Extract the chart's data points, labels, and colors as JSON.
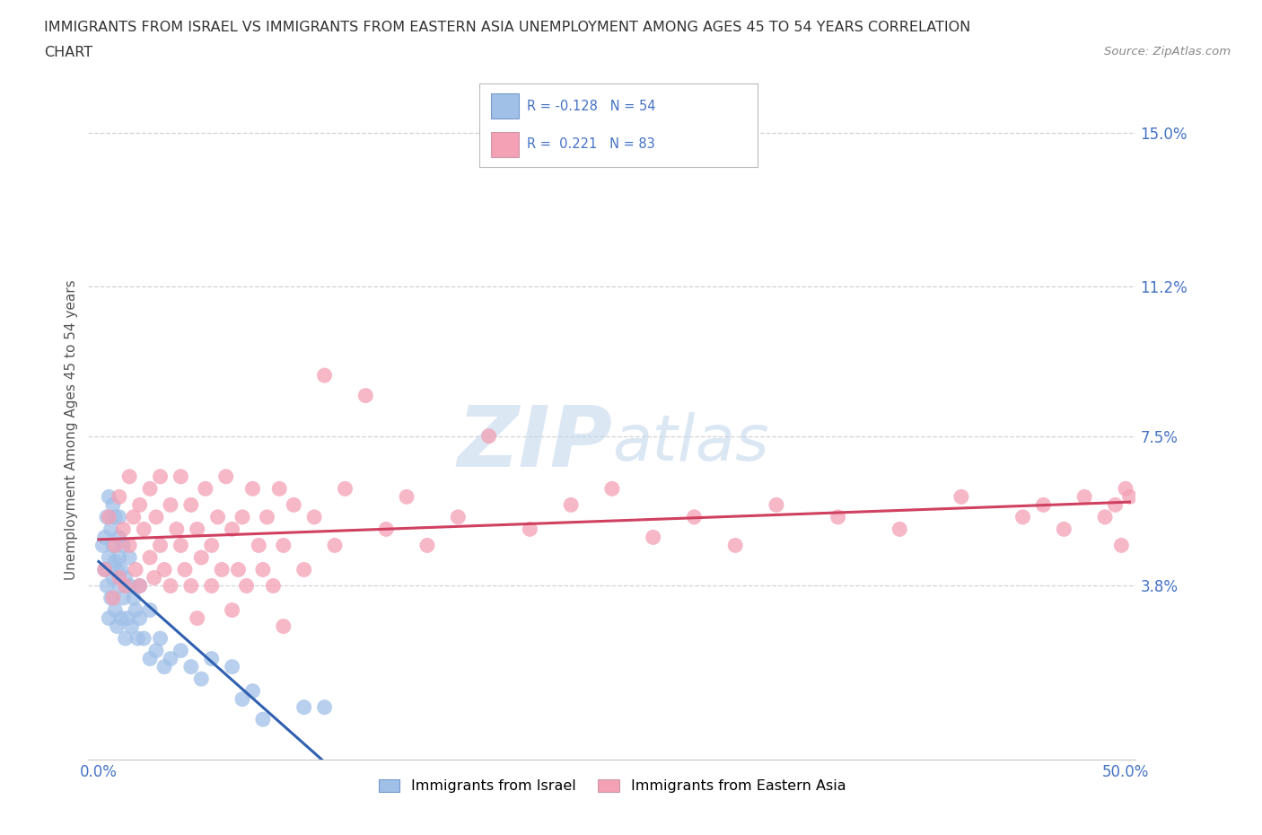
{
  "title_line1": "IMMIGRANTS FROM ISRAEL VS IMMIGRANTS FROM EASTERN ASIA UNEMPLOYMENT AMONG AGES 45 TO 54 YEARS CORRELATION",
  "title_line2": "CHART",
  "source": "Source: ZipAtlas.com",
  "ylabel": "Unemployment Among Ages 45 to 54 years",
  "xlim": [
    -0.005,
    0.505
  ],
  "ylim": [
    -0.005,
    0.158
  ],
  "xticks": [
    0.0,
    0.1,
    0.2,
    0.3,
    0.4,
    0.5
  ],
  "xticklabels": [
    "0.0%",
    "",
    "",
    "",
    "",
    "50.0%"
  ],
  "ytick_vals": [
    0.038,
    0.075,
    0.112,
    0.15
  ],
  "ytick_labels": [
    "3.8%",
    "7.5%",
    "11.2%",
    "15.0%"
  ],
  "watermark": "ZIPatlas",
  "legend_label1": "Immigrants from Israel",
  "legend_label2": "Immigrants from Eastern Asia",
  "R1": -0.128,
  "N1": 54,
  "R2": 0.221,
  "N2": 83,
  "color_israel": "#a0c0e8",
  "color_eastern_asia": "#f4a0b5",
  "line_color_israel": "#3060b0",
  "line_color_eastern_asia": "#d04060",
  "background_color": "#ffffff",
  "israel_x": [
    0.002,
    0.003,
    0.003,
    0.004,
    0.004,
    0.005,
    0.005,
    0.005,
    0.006,
    0.006,
    0.007,
    0.007,
    0.007,
    0.008,
    0.008,
    0.008,
    0.009,
    0.009,
    0.01,
    0.01,
    0.01,
    0.01,
    0.011,
    0.011,
    0.012,
    0.012,
    0.013,
    0.013,
    0.014,
    0.015,
    0.015,
    0.016,
    0.017,
    0.018,
    0.019,
    0.02,
    0.02,
    0.022,
    0.025,
    0.025,
    0.028,
    0.03,
    0.032,
    0.035,
    0.04,
    0.045,
    0.05,
    0.055,
    0.065,
    0.07,
    0.075,
    0.08,
    0.1,
    0.11
  ],
  "israel_y": [
    0.048,
    0.042,
    0.05,
    0.038,
    0.055,
    0.03,
    0.045,
    0.06,
    0.035,
    0.052,
    0.04,
    0.048,
    0.058,
    0.032,
    0.044,
    0.055,
    0.028,
    0.042,
    0.038,
    0.05,
    0.045,
    0.055,
    0.03,
    0.042,
    0.035,
    0.048,
    0.025,
    0.04,
    0.03,
    0.038,
    0.045,
    0.028,
    0.035,
    0.032,
    0.025,
    0.03,
    0.038,
    0.025,
    0.02,
    0.032,
    0.022,
    0.025,
    0.018,
    0.02,
    0.022,
    0.018,
    0.015,
    0.02,
    0.018,
    0.01,
    0.012,
    0.005,
    0.008,
    0.008
  ],
  "eastern_asia_x": [
    0.003,
    0.005,
    0.007,
    0.008,
    0.01,
    0.01,
    0.012,
    0.013,
    0.015,
    0.015,
    0.017,
    0.018,
    0.02,
    0.02,
    0.022,
    0.025,
    0.025,
    0.027,
    0.028,
    0.03,
    0.03,
    0.032,
    0.035,
    0.035,
    0.038,
    0.04,
    0.04,
    0.042,
    0.045,
    0.045,
    0.048,
    0.05,
    0.052,
    0.055,
    0.055,
    0.058,
    0.06,
    0.062,
    0.065,
    0.068,
    0.07,
    0.072,
    0.075,
    0.078,
    0.08,
    0.082,
    0.085,
    0.088,
    0.09,
    0.095,
    0.1,
    0.105,
    0.11,
    0.115,
    0.12,
    0.13,
    0.14,
    0.15,
    0.16,
    0.175,
    0.19,
    0.21,
    0.23,
    0.25,
    0.27,
    0.29,
    0.31,
    0.33,
    0.36,
    0.39,
    0.42,
    0.45,
    0.46,
    0.47,
    0.48,
    0.49,
    0.495,
    0.498,
    0.5,
    0.502,
    0.048,
    0.065,
    0.09
  ],
  "eastern_asia_y": [
    0.042,
    0.055,
    0.035,
    0.048,
    0.04,
    0.06,
    0.052,
    0.038,
    0.065,
    0.048,
    0.055,
    0.042,
    0.058,
    0.038,
    0.052,
    0.045,
    0.062,
    0.04,
    0.055,
    0.048,
    0.065,
    0.042,
    0.058,
    0.038,
    0.052,
    0.048,
    0.065,
    0.042,
    0.058,
    0.038,
    0.052,
    0.045,
    0.062,
    0.048,
    0.038,
    0.055,
    0.042,
    0.065,
    0.052,
    0.042,
    0.055,
    0.038,
    0.062,
    0.048,
    0.042,
    0.055,
    0.038,
    0.062,
    0.048,
    0.058,
    0.042,
    0.055,
    0.09,
    0.048,
    0.062,
    0.085,
    0.052,
    0.06,
    0.048,
    0.055,
    0.075,
    0.052,
    0.058,
    0.062,
    0.05,
    0.055,
    0.048,
    0.058,
    0.055,
    0.052,
    0.06,
    0.055,
    0.058,
    0.052,
    0.06,
    0.055,
    0.058,
    0.048,
    0.062,
    0.06,
    0.03,
    0.032,
    0.028
  ],
  "grid_color": "#c8c8c8",
  "tick_color": "#4472c4",
  "title_color": "#333333",
  "source_color": "#888888",
  "ylabel_color": "#555555"
}
